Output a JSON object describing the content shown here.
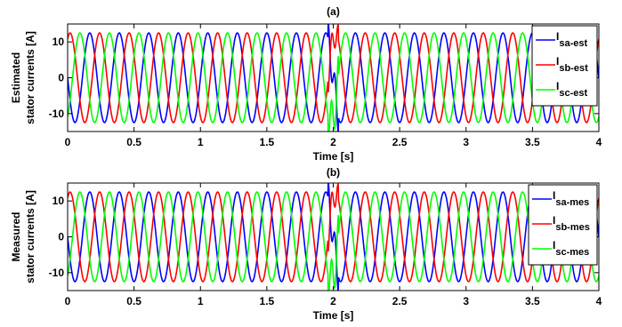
{
  "chart_data": [
    {
      "type": "line",
      "title": "(a)",
      "xlabel": "Time [s]",
      "ylabel": [
        "Estimated",
        "stator currents [A]"
      ],
      "xlim": [
        0,
        4
      ],
      "ylim": [
        -15,
        15
      ],
      "xticks": [
        0,
        0.5,
        1,
        1.5,
        2,
        2.5,
        3,
        3.5,
        4
      ],
      "xtick_labels": [
        "0",
        "0.5",
        "1",
        "1.5",
        "2",
        "2.5",
        "3",
        "3.5",
        "4"
      ],
      "yticks": [
        -10,
        0,
        10
      ],
      "ytick_labels": [
        "-10",
        "0",
        "10"
      ],
      "grid": false,
      "legend_position": "top-right",
      "waveform": {
        "amplitude": 12.5,
        "cycles_over_0_to_4s": 18,
        "disturbance_time": 2.0
      },
      "series": [
        {
          "name": "I",
          "sub": "sa-est",
          "color": "#0000ff",
          "phase_deg": 180
        },
        {
          "name": "I",
          "sub": "sb-est",
          "color": "#ff0000",
          "phase_deg": 60
        },
        {
          "name": "I",
          "sub": "sc-est",
          "color": "#00ff00",
          "phase_deg": -60
        }
      ]
    },
    {
      "type": "line",
      "title": "(b)",
      "xlabel": "Time [s]",
      "ylabel": [
        "Measured",
        "stator currents [A]"
      ],
      "xlim": [
        0,
        4
      ],
      "ylim": [
        -15,
        15
      ],
      "xticks": [
        0,
        0.5,
        1,
        1.5,
        2,
        2.5,
        3,
        3.5,
        4
      ],
      "xtick_labels": [
        "0",
        "0.5",
        "1",
        "1.5",
        "2",
        "2.5",
        "3",
        "3.5",
        "4"
      ],
      "yticks": [
        -10,
        0,
        10
      ],
      "ytick_labels": [
        "-10",
        "0",
        "10"
      ],
      "grid": false,
      "legend_position": "top-right",
      "waveform": {
        "amplitude": 12.5,
        "cycles_over_0_to_4s": 18,
        "disturbance_time": 2.0
      },
      "series": [
        {
          "name": "I",
          "sub": "sa-mes",
          "color": "#0000ff",
          "phase_deg": 180
        },
        {
          "name": "I",
          "sub": "sb-mes",
          "color": "#ff0000",
          "phase_deg": 60
        },
        {
          "name": "I",
          "sub": "sc-mes",
          "color": "#00ff00",
          "phase_deg": -60
        }
      ]
    }
  ]
}
